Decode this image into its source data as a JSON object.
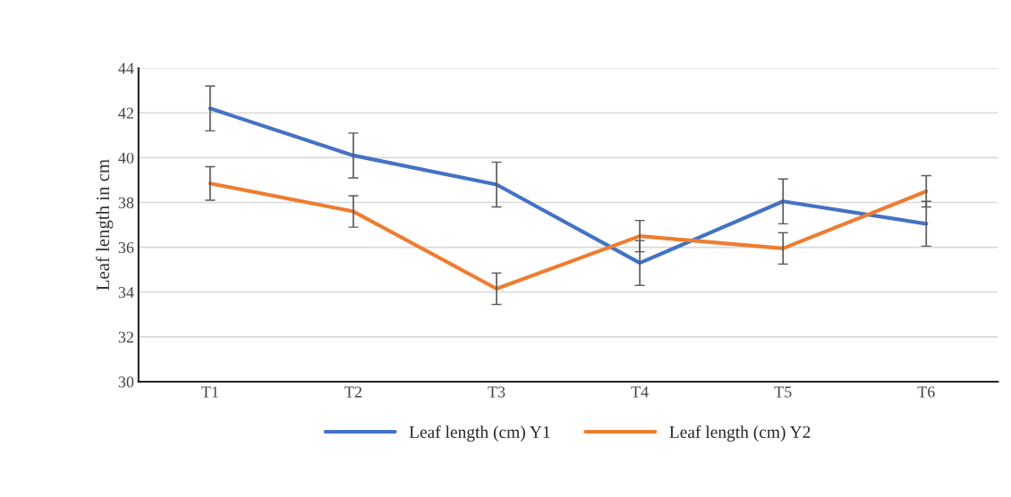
{
  "chart_data": {
    "type": "line",
    "ylabel": "Leaf length in cm",
    "categories": [
      "T1",
      "T2",
      "T3",
      "T4",
      "T5",
      "T6"
    ],
    "series": [
      {
        "name": "Leaf length (cm) Y1",
        "color": "#4472c4",
        "values": [
          42.2,
          40.1,
          38.8,
          35.3,
          38.05,
          37.05
        ],
        "errors": [
          1.0,
          1.0,
          1.0,
          1.0,
          1.0,
          1.0
        ]
      },
      {
        "name": "Leaf length (cm) Y2",
        "color": "#ed7d31",
        "values": [
          38.85,
          37.6,
          34.15,
          36.5,
          35.95,
          38.5
        ],
        "errors": [
          0.75,
          0.7,
          0.7,
          0.7,
          0.7,
          0.7
        ]
      }
    ],
    "ylim": [
      30,
      44
    ],
    "yticks": [
      30,
      32,
      34,
      36,
      38,
      40,
      42,
      44
    ],
    "grid": "y",
    "legend": "bottom",
    "marker": "none",
    "line_style": "solid"
  }
}
